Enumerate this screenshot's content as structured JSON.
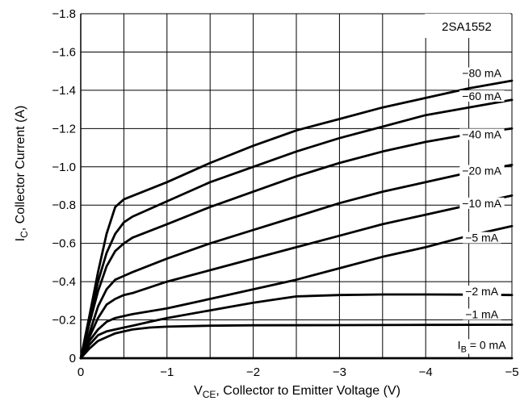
{
  "chart_data": {
    "type": "line",
    "part_number": "2SA1552",
    "xlabel": {
      "main": "V",
      "sub": "CE",
      "rest": ", Collector to Emitter Voltage (V)"
    },
    "ylabel": {
      "main": "I",
      "sub": "C",
      "rest": ", Collector Current (A)"
    },
    "xlim": [
      0,
      -5
    ],
    "ylim": [
      0,
      -1.8
    ],
    "x_ticks": [
      {
        "value": 0,
        "label": "0"
      },
      {
        "value": -1,
        "label": "−1"
      },
      {
        "value": -2,
        "label": "−2"
      },
      {
        "value": -3,
        "label": "−3"
      },
      {
        "value": -4,
        "label": "−4"
      },
      {
        "value": -5,
        "label": "−5"
      }
    ],
    "y_ticks": [
      {
        "value": 0,
        "label": "0"
      },
      {
        "value": -0.2,
        "label": "−0.2"
      },
      {
        "value": -0.4,
        "label": "−0.4"
      },
      {
        "value": -0.6,
        "label": "−0.6"
      },
      {
        "value": -0.8,
        "label": "−0.8"
      },
      {
        "value": -1.0,
        "label": "−1.0"
      },
      {
        "value": -1.2,
        "label": "−1.2"
      },
      {
        "value": -1.4,
        "label": "−1.4"
      },
      {
        "value": -1.6,
        "label": "−1.6"
      },
      {
        "value": -1.8,
        "label": "−1.8"
      }
    ],
    "grid": true,
    "series": [
      {
        "name": "−80 mA",
        "label_at": [
          -4.65,
          -1.49
        ],
        "x": [
          0,
          -0.1,
          -0.2,
          -0.3,
          -0.4,
          -0.5,
          -1,
          -1.5,
          -2,
          -2.5,
          -3,
          -3.5,
          -4,
          -4.5,
          -5
        ],
        "y": [
          0,
          -0.22,
          -0.45,
          -0.65,
          -0.79,
          -0.83,
          -0.92,
          -1.02,
          -1.11,
          -1.19,
          -1.25,
          -1.31,
          -1.36,
          -1.41,
          -1.45
        ]
      },
      {
        "name": "−60 mA",
        "label_at": [
          -4.65,
          -1.37
        ],
        "x": [
          0,
          -0.1,
          -0.2,
          -0.3,
          -0.4,
          -0.5,
          -0.6,
          -1,
          -1.5,
          -2,
          -2.5,
          -3,
          -3.5,
          -4,
          -4.5,
          -5
        ],
        "y": [
          0,
          -0.2,
          -0.4,
          -0.55,
          -0.65,
          -0.71,
          -0.74,
          -0.82,
          -0.92,
          -1.0,
          -1.08,
          -1.15,
          -1.21,
          -1.27,
          -1.31,
          -1.35
        ]
      },
      {
        "name": "−40 mA",
        "label_at": [
          -4.65,
          -1.17
        ],
        "x": [
          0,
          -0.1,
          -0.2,
          -0.3,
          -0.4,
          -0.5,
          -0.6,
          -1,
          -1.5,
          -2,
          -2.5,
          -3,
          -3.5,
          -4,
          -4.5,
          -5
        ],
        "y": [
          0,
          -0.18,
          -0.35,
          -0.48,
          -0.56,
          -0.6,
          -0.63,
          -0.7,
          -0.79,
          -0.87,
          -0.95,
          -1.02,
          -1.08,
          -1.13,
          -1.17,
          -1.2
        ]
      },
      {
        "name": "−20 mA",
        "label_at": [
          -4.65,
          -0.98
        ],
        "x": [
          0,
          -0.1,
          -0.2,
          -0.3,
          -0.4,
          -0.5,
          -0.6,
          -1,
          -1.5,
          -2,
          -2.5,
          -3,
          -3.5,
          -4,
          -4.5,
          -5
        ],
        "y": [
          0,
          -0.13,
          -0.27,
          -0.36,
          -0.41,
          -0.43,
          -0.45,
          -0.52,
          -0.6,
          -0.67,
          -0.74,
          -0.81,
          -0.87,
          -0.92,
          -0.97,
          -1.01
        ]
      },
      {
        "name": "−10 mA",
        "label_at": [
          -4.65,
          -0.81
        ],
        "x": [
          0,
          -0.1,
          -0.2,
          -0.3,
          -0.4,
          -0.5,
          -0.6,
          -1,
          -1.5,
          -2,
          -2.5,
          -3,
          -3.5,
          -4,
          -4.5,
          -5
        ],
        "y": [
          0,
          -0.11,
          -0.21,
          -0.28,
          -0.31,
          -0.33,
          -0.34,
          -0.4,
          -0.46,
          -0.52,
          -0.58,
          -0.64,
          -0.7,
          -0.75,
          -0.8,
          -0.85
        ]
      },
      {
        "name": "−5 mA",
        "label_at": [
          -4.65,
          -0.63
        ],
        "x": [
          0,
          -0.1,
          -0.2,
          -0.3,
          -0.4,
          -0.5,
          -0.6,
          -1,
          -1.5,
          -2,
          -2.5,
          -3,
          -3.5,
          -4,
          -4.5,
          -5
        ],
        "y": [
          0,
          -0.09,
          -0.15,
          -0.19,
          -0.21,
          -0.22,
          -0.23,
          -0.26,
          -0.31,
          -0.36,
          -0.41,
          -0.47,
          -0.53,
          -0.58,
          -0.64,
          -0.69
        ]
      },
      {
        "name": "−2 mA",
        "label_at": [
          -4.65,
          -0.35
        ],
        "x": [
          0,
          -0.1,
          -0.2,
          -0.3,
          -0.4,
          -0.5,
          -0.6,
          -0.8,
          -1,
          -1.5,
          -2,
          -2.3,
          -2.5,
          -3,
          -3.5,
          -4,
          -4.5,
          -5
        ],
        "y": [
          0,
          -0.07,
          -0.12,
          -0.14,
          -0.15,
          -0.16,
          -0.17,
          -0.19,
          -0.21,
          -0.25,
          -0.29,
          -0.31,
          -0.323,
          -0.33,
          -0.333,
          -0.333,
          -0.332,
          -0.33
        ]
      },
      {
        "name": "−1 mA",
        "label_at": [
          -4.65,
          -0.23
        ],
        "x": [
          0,
          -0.1,
          -0.2,
          -0.3,
          -0.4,
          -0.5,
          -0.6,
          -0.8,
          -1,
          -1.5,
          -2,
          -3,
          -4,
          -5
        ],
        "y": [
          0,
          -0.05,
          -0.09,
          -0.11,
          -0.13,
          -0.14,
          -0.15,
          -0.16,
          -0.165,
          -0.17,
          -0.172,
          -0.173,
          -0.174,
          -0.175
        ]
      },
      {
        "name": "0 mA",
        "label_at": [
          -4.65,
          -0.07
        ],
        "x": [
          0,
          -5
        ],
        "y": [
          0,
          0
        ]
      }
    ],
    "ib_label_prefix": {
      "main": "I",
      "sub": "B",
      "rest": " = "
    }
  }
}
